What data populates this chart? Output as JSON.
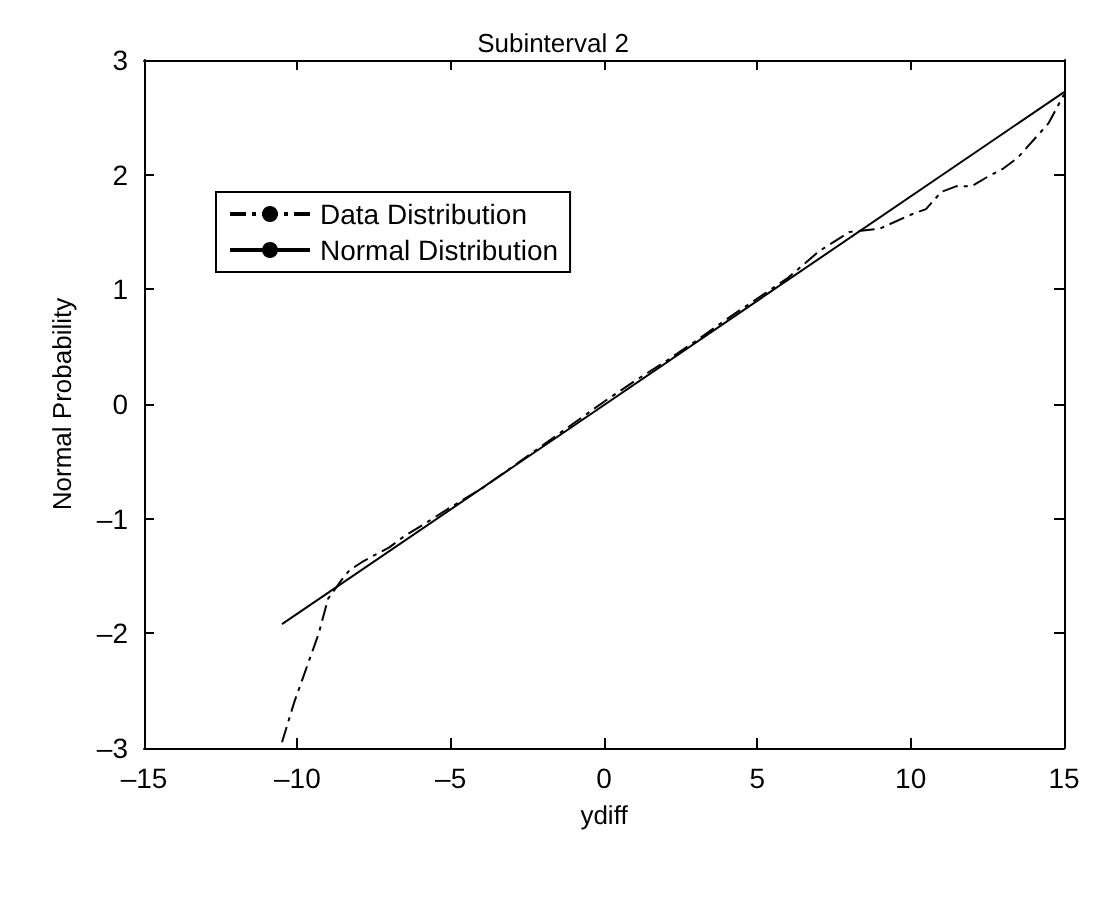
{
  "chart_data": {
    "type": "line",
    "title": "Subinterval 2",
    "xlabel": "ydiff",
    "ylabel": "Normal Probability",
    "series": [
      {
        "name": "Data Distribution",
        "color": "#000000",
        "line_style": "dashdot",
        "x": [
          -10.5,
          -10.1,
          -9.7,
          -9.3,
          -9.0,
          -8.6,
          -8.3,
          -7.9,
          -7.5,
          -7.0,
          -6.5,
          -6.0,
          -5.0,
          -4.0,
          -3.0,
          -2.0,
          -1.0,
          0.0,
          1.0,
          2.0,
          3.0,
          4.0,
          5.0,
          6.0,
          7.0,
          8.0,
          9.0,
          10.0,
          10.5,
          11.0,
          11.5,
          12.0,
          12.5,
          13.0,
          13.5,
          14.0,
          14.5,
          15.0
        ],
        "values": [
          -2.95,
          -2.6,
          -2.3,
          -2.0,
          -1.7,
          -1.55,
          -1.45,
          -1.38,
          -1.32,
          -1.25,
          -1.15,
          -1.07,
          -0.9,
          -0.74,
          -0.55,
          -0.36,
          -0.17,
          0.02,
          0.2,
          0.37,
          0.55,
          0.74,
          0.92,
          1.1,
          1.33,
          1.5,
          1.53,
          1.65,
          1.7,
          1.85,
          1.9,
          1.9,
          1.98,
          2.05,
          2.15,
          2.3,
          2.45,
          2.7
        ]
      },
      {
        "name": "Normal Distribution",
        "color": "#000000",
        "line_style": "solid",
        "x": [
          -10.5,
          15
        ],
        "values": [
          -1.92,
          2.72
        ]
      }
    ],
    "xlim": [
      -15,
      15
    ],
    "xticks": [
      {
        "value": -15,
        "label": "–15"
      },
      {
        "value": -10,
        "label": "–10"
      },
      {
        "value": -5,
        "label": "–5"
      },
      0,
      5,
      10,
      15
    ],
    "ylim": [
      -3,
      3
    ],
    "yticks": [
      {
        "value": -3,
        "label": "–3"
      },
      {
        "value": -2,
        "label": "–2"
      },
      {
        "value": -1,
        "label": "–1"
      },
      0,
      1,
      2,
      3
    ],
    "legend": "top left",
    "marker": "none"
  }
}
